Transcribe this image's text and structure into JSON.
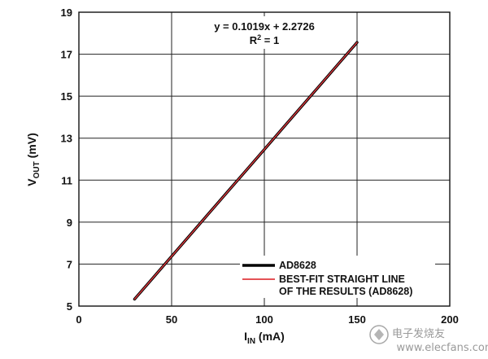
{
  "chart_data": {
    "type": "line",
    "xlabel_main": "I",
    "xlabel_sub": "IN",
    "xlabel_unit": " (mA)",
    "ylabel_main": "V",
    "ylabel_sub": "OUT",
    "ylabel_unit": " (mV)",
    "xlim": [
      0,
      200
    ],
    "ylim": [
      5,
      19
    ],
    "x_ticks": [
      0,
      50,
      100,
      150,
      200
    ],
    "y_ticks": [
      5,
      7,
      9,
      11,
      13,
      15,
      17,
      19
    ],
    "grid": true,
    "legend_position": "bottom-right",
    "annotation": {
      "equation": "y = 0.1019x + 2.2726",
      "r_squared_main": "R",
      "r_squared_sup": "2",
      "r_squared_value": " = 1"
    },
    "series": [
      {
        "name": "AD8628",
        "color": "#000000",
        "x": [
          30,
          40,
          50,
          60,
          70,
          80,
          90,
          100,
          110,
          120,
          130,
          140,
          150
        ],
        "y": [
          5.33,
          6.35,
          7.37,
          8.39,
          9.41,
          10.43,
          11.44,
          12.46,
          13.48,
          14.5,
          15.52,
          16.54,
          17.56
        ]
      },
      {
        "name_line1": "BEST-FIT STRAIGHT LINE",
        "name_line2": "OF THE RESULTS (AD8628)",
        "color": "#e0393e",
        "x": [
          30,
          150
        ],
        "y": [
          5.33,
          17.56
        ]
      }
    ]
  },
  "watermark": {
    "text": "电子发烧友",
    "url": "www.elecfans.com"
  }
}
